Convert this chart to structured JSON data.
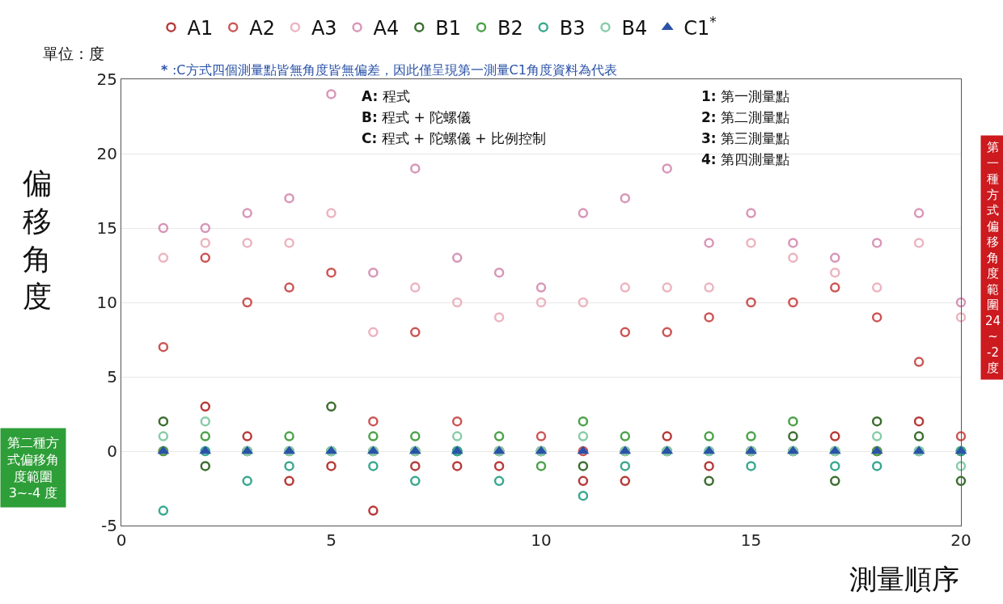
{
  "chart_data": {
    "type": "scatter",
    "xlabel": "測量順序",
    "ylabel": "偏移角度",
    "x": [
      1,
      2,
      3,
      4,
      5,
      6,
      7,
      8,
      9,
      10,
      11,
      12,
      13,
      14,
      15,
      16,
      17,
      18,
      19,
      20
    ],
    "xlim": [
      0,
      20
    ],
    "xticks": [
      0,
      5,
      10,
      15,
      20
    ],
    "ylim": [
      -5,
      25
    ],
    "yticks": [
      -5,
      0,
      5,
      10,
      15,
      20,
      25
    ],
    "grid": "y",
    "legend": "top",
    "marker": "circle",
    "series": [
      {
        "name": "A1",
        "color": "#b83a3a",
        "values": [
          0,
          3,
          1,
          -2,
          -1,
          -4,
          -1,
          -1,
          -1,
          0,
          -2,
          -2,
          1,
          -1,
          0,
          0,
          1,
          0,
          2,
          0
        ]
      },
      {
        "name": "A2",
        "color": "#cc5656",
        "values": [
          7,
          13,
          10,
          11,
          12,
          2,
          8,
          2,
          0,
          1,
          0,
          8,
          8,
          9,
          10,
          10,
          11,
          9,
          6,
          1
        ]
      },
      {
        "name": "A3",
        "color": "#ecb4c0",
        "values": [
          13,
          14,
          14,
          14,
          16,
          8,
          11,
          10,
          9,
          10,
          10,
          11,
          11,
          11,
          14,
          13,
          12,
          11,
          14,
          9
        ]
      },
      {
        "name": "A4",
        "color": "#d896b8",
        "values": [
          15,
          15,
          16,
          17,
          24,
          12,
          19,
          13,
          12,
          11,
          16,
          17,
          19,
          14,
          16,
          14,
          13,
          14,
          16,
          10
        ]
      },
      {
        "name": "B1",
        "color": "#3c6e30",
        "values": [
          2,
          -1,
          0,
          0,
          3,
          0,
          0,
          0,
          0,
          0,
          -1,
          0,
          0,
          -2,
          0,
          1,
          -2,
          2,
          1,
          -2
        ]
      },
      {
        "name": "B2",
        "color": "#4ca24a",
        "values": [
          0,
          1,
          0,
          1,
          0,
          1,
          1,
          0,
          1,
          -1,
          2,
          1,
          0,
          1,
          1,
          2,
          0,
          0,
          0,
          0
        ]
      },
      {
        "name": "B3",
        "color": "#3aa890",
        "values": [
          -4,
          0,
          -2,
          -1,
          0,
          -1,
          -2,
          0,
          -2,
          0,
          -3,
          -1,
          0,
          0,
          -1,
          0,
          -1,
          -1,
          0,
          0
        ]
      },
      {
        "name": "B4",
        "color": "#88cca8",
        "values": [
          1,
          2,
          0,
          0,
          0,
          0,
          0,
          1,
          0,
          0,
          1,
          0,
          0,
          0,
          0,
          0,
          0,
          1,
          0,
          -1
        ]
      },
      {
        "name": "C1$^{*}$",
        "color": "#2a52a8",
        "marker": "triangle",
        "values": [
          0,
          0,
          0,
          0,
          0,
          0,
          0,
          0,
          0,
          0,
          0,
          0,
          0,
          0,
          0,
          0,
          0,
          0,
          0,
          0
        ]
      }
    ],
    "annotations": [
      "單位：度",
      "* :C方式四個測量點皆無角度皆無偏差，因此僅呈現第一測量C1角度資料為代表",
      "A: 程式",
      "B: 程式 + 陀螺儀",
      "C: 程式 + 陀螺儀 + 比例控制",
      "1: 第一測量點",
      "2: 第二測量點",
      "3: 第三測量點",
      "4: 第四測量點",
      "第二種方式偏移角度範圍3~-4 度",
      "第一種方式偏移角度範圍24~-2度"
    ]
  }
}
